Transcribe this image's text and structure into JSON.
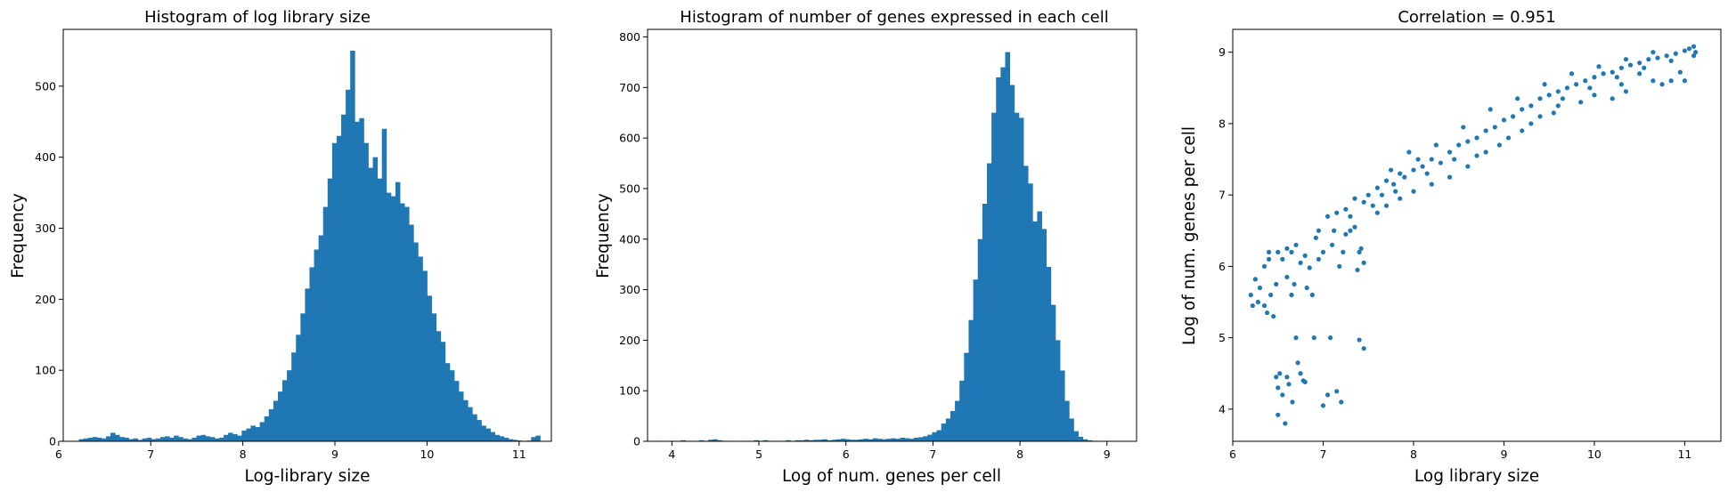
{
  "chart_data": [
    {
      "type": "bar",
      "title": "Histogram of log library size",
      "xlabel": "Log-library size",
      "ylabel": "Frequency",
      "xlim": [
        6.05,
        11.35
      ],
      "ylim": [
        0,
        580
      ],
      "xticks": [
        6,
        7,
        8,
        9,
        10,
        11
      ],
      "yticks": [
        0,
        100,
        200,
        300,
        400,
        500
      ],
      "bin_start": 6.22,
      "bin_width": 0.0491,
      "values": [
        3,
        4,
        5,
        6,
        5,
        4,
        7,
        12,
        9,
        6,
        5,
        3,
        4,
        2,
        4,
        5,
        3,
        4,
        6,
        7,
        5,
        8,
        6,
        4,
        3,
        5,
        8,
        9,
        7,
        6,
        4,
        5,
        9,
        12,
        10,
        8,
        15,
        18,
        22,
        20,
        27,
        35,
        45,
        57,
        70,
        86,
        100,
        125,
        150,
        180,
        215,
        245,
        270,
        290,
        330,
        370,
        420,
        430,
        460,
        495,
        550,
        450,
        455,
        420,
        385,
        400,
        370,
        440,
        350,
        345,
        365,
        335,
        330,
        305,
        280,
        260,
        240,
        205,
        180,
        155,
        140,
        110,
        100,
        85,
        70,
        58,
        48,
        38,
        30,
        22,
        18,
        13,
        9,
        7,
        5,
        3,
        2,
        1,
        0,
        1,
        6,
        8
      ]
    },
    {
      "type": "bar",
      "title": "Histogram of number of genes expressed in each cell",
      "xlabel": "Log of num. genes per cell",
      "ylabel": "Frequency",
      "xlim": [
        3.72,
        9.34
      ],
      "ylim": [
        0,
        815
      ],
      "xticks": [
        4,
        5,
        6,
        7,
        8,
        9
      ],
      "yticks": [
        0,
        100,
        200,
        300,
        400,
        500,
        600,
        700,
        800
      ],
      "bin_start": 3.84,
      "bin_width": 0.0525,
      "values": [
        1,
        0,
        0,
        1,
        0,
        2,
        1,
        0,
        1,
        2,
        1,
        3,
        4,
        2,
        1,
        1,
        0,
        0,
        0,
        1,
        1,
        2,
        1,
        2,
        1,
        0,
        0,
        1,
        2,
        1,
        2,
        2,
        3,
        2,
        3,
        3,
        4,
        2,
        3,
        4,
        5,
        4,
        3,
        3,
        4,
        5,
        4,
        6,
        5,
        4,
        5,
        6,
        5,
        7,
        6,
        5,
        7,
        8,
        10,
        13,
        18,
        22,
        35,
        45,
        60,
        80,
        120,
        175,
        240,
        320,
        400,
        470,
        550,
        650,
        720,
        740,
        770,
        705,
        650,
        640,
        545,
        510,
        435,
        455,
        420,
        345,
        270,
        200,
        140,
        80,
        45,
        20,
        9,
        4,
        2,
        1,
        0,
        0,
        1
      ]
    },
    {
      "type": "scatter",
      "title": "Correlation = 0.951",
      "xlabel": "Log library size",
      "ylabel": "Log of num. genes per cell",
      "xlim": [
        6.0,
        11.4
      ],
      "ylim": [
        3.55,
        9.32
      ],
      "xticks": [
        6,
        7,
        8,
        9,
        10,
        11
      ],
      "yticks": [
        4,
        5,
        6,
        7,
        8,
        9
      ],
      "points": [
        [
          6.2,
          5.6
        ],
        [
          6.22,
          5.45
        ],
        [
          6.25,
          5.82
        ],
        [
          6.28,
          5.5
        ],
        [
          6.3,
          5.7
        ],
        [
          6.35,
          6.0
        ],
        [
          6.38,
          5.35
        ],
        [
          6.4,
          6.1
        ],
        [
          6.42,
          5.6
        ],
        [
          6.45,
          5.3
        ],
        [
          6.48,
          4.45
        ],
        [
          6.5,
          4.3
        ],
        [
          6.52,
          4.5
        ],
        [
          6.55,
          4.2
        ],
        [
          6.5,
          3.92
        ],
        [
          6.58,
          3.8
        ],
        [
          6.6,
          4.45
        ],
        [
          6.62,
          4.35
        ],
        [
          6.66,
          4.1
        ],
        [
          6.65,
          5.6
        ],
        [
          6.68,
          5.75
        ],
        [
          6.7,
          5.0
        ],
        [
          6.72,
          4.65
        ],
        [
          6.75,
          4.5
        ],
        [
          6.78,
          4.4
        ],
        [
          6.8,
          4.38
        ],
        [
          6.82,
          5.7
        ],
        [
          6.85,
          5.98
        ],
        [
          6.9,
          5.0
        ],
        [
          6.5,
          6.2
        ],
        [
          6.55,
          6.1
        ],
        [
          6.6,
          6.25
        ],
        [
          6.65,
          6.2
        ],
        [
          6.7,
          6.3
        ],
        [
          6.75,
          6.05
        ],
        [
          6.8,
          6.15
        ],
        [
          6.88,
          5.6
        ],
        [
          6.92,
          6.4
        ],
        [
          6.95,
          6.1
        ],
        [
          7.0,
          6.2
        ],
        [
          7.0,
          4.05
        ],
        [
          7.05,
          4.2
        ],
        [
          7.08,
          5.0
        ],
        [
          7.1,
          6.3
        ],
        [
          7.12,
          6.5
        ],
        [
          7.15,
          4.25
        ],
        [
          7.18,
          6.0
        ],
        [
          7.2,
          4.1
        ],
        [
          7.22,
          6.2
        ],
        [
          7.25,
          6.45
        ],
        [
          7.3,
          6.5
        ],
        [
          7.35,
          6.55
        ],
        [
          7.4,
          6.2
        ],
        [
          7.38,
          5.95
        ],
        [
          7.42,
          6.25
        ],
        [
          7.45,
          6.05
        ],
        [
          7.4,
          4.97
        ],
        [
          7.45,
          4.85
        ],
        [
          6.4,
          6.2
        ],
        [
          6.48,
          5.75
        ],
        [
          6.35,
          5.45
        ],
        [
          6.6,
          5.85
        ],
        [
          6.95,
          6.5
        ],
        [
          7.05,
          6.7
        ],
        [
          7.15,
          6.75
        ],
        [
          7.25,
          6.8
        ],
        [
          7.35,
          6.95
        ],
        [
          7.5,
          7.0
        ],
        [
          7.55,
          6.85
        ],
        [
          7.6,
          7.1
        ],
        [
          7.65,
          7.0
        ],
        [
          7.7,
          7.2
        ],
        [
          7.78,
          7.15
        ],
        [
          7.85,
          7.3
        ],
        [
          7.9,
          7.25
        ],
        [
          8.0,
          7.35
        ],
        [
          8.1,
          7.4
        ],
        [
          8.2,
          7.5
        ],
        [
          8.3,
          7.45
        ],
        [
          8.4,
          7.6
        ],
        [
          8.5,
          7.7
        ],
        [
          8.6,
          7.75
        ],
        [
          8.7,
          7.8
        ],
        [
          8.8,
          7.9
        ],
        [
          8.9,
          7.95
        ],
        [
          9.0,
          8.05
        ],
        [
          9.1,
          8.1
        ],
        [
          9.2,
          8.2
        ],
        [
          9.3,
          8.25
        ],
        [
          9.4,
          8.35
        ],
        [
          9.5,
          8.4
        ],
        [
          9.6,
          8.45
        ],
        [
          9.7,
          8.5
        ],
        [
          9.8,
          8.55
        ],
        [
          9.9,
          8.6
        ],
        [
          10.0,
          8.65
        ],
        [
          10.1,
          8.7
        ],
        [
          10.2,
          8.72
        ],
        [
          10.3,
          8.78
        ],
        [
          10.4,
          8.82
        ],
        [
          10.5,
          8.85
        ],
        [
          10.6,
          8.9
        ],
        [
          10.7,
          8.92
        ],
        [
          10.8,
          8.95
        ],
        [
          10.9,
          8.98
        ],
        [
          11.0,
          9.02
        ],
        [
          11.05,
          9.05
        ],
        [
          11.1,
          9.08
        ],
        [
          11.12,
          9.0
        ],
        [
          10.95,
          8.72
        ],
        [
          10.85,
          8.6
        ],
        [
          10.5,
          8.7
        ],
        [
          10.3,
          8.55
        ],
        [
          10.2,
          8.35
        ],
        [
          10.0,
          8.4
        ],
        [
          9.85,
          8.3
        ],
        [
          9.6,
          8.25
        ],
        [
          9.4,
          8.1
        ],
        [
          9.2,
          7.9
        ],
        [
          9.05,
          7.8
        ],
        [
          8.8,
          7.6
        ],
        [
          8.6,
          7.4
        ],
        [
          8.4,
          7.25
        ],
        [
          8.2,
          7.15
        ],
        [
          8.0,
          7.05
        ],
        [
          7.85,
          6.95
        ],
        [
          7.7,
          6.85
        ],
        [
          7.6,
          6.75
        ],
        [
          9.3,
          8.0
        ],
        [
          9.55,
          8.15
        ],
        [
          8.7,
          7.55
        ],
        [
          8.95,
          7.7
        ],
        [
          10.35,
          8.45
        ],
        [
          10.65,
          8.6
        ],
        [
          11.0,
          8.6
        ],
        [
          10.75,
          8.55
        ],
        [
          7.95,
          7.6
        ],
        [
          8.25,
          7.7
        ],
        [
          8.55,
          7.95
        ],
        [
          8.85,
          8.2
        ],
        [
          9.15,
          8.35
        ],
        [
          9.45,
          8.55
        ],
        [
          9.75,
          8.7
        ],
        [
          10.05,
          8.8
        ],
        [
          10.35,
          8.9
        ],
        [
          10.65,
          9.0
        ],
        [
          8.15,
          7.3
        ],
        [
          8.45,
          7.5
        ],
        [
          9.65,
          8.35
        ],
        [
          9.95,
          8.5
        ],
        [
          10.25,
          8.65
        ],
        [
          10.55,
          8.78
        ],
        [
          10.85,
          8.88
        ],
        [
          11.1,
          8.95
        ],
        [
          7.3,
          6.7
        ],
        [
          7.45,
          6.9
        ],
        [
          7.8,
          7.05
        ],
        [
          7.75,
          7.35
        ],
        [
          8.05,
          7.5
        ]
      ]
    }
  ]
}
